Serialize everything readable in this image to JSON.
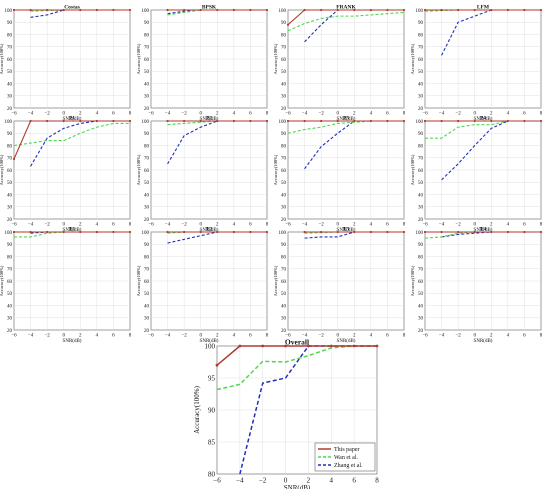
{
  "figure": {
    "legend": [
      {
        "key": "ours",
        "label": "This paper",
        "color": "#b03a2e",
        "dash": "solid"
      },
      {
        "key": "wan",
        "label": "Wan et al.",
        "color": "#4fd64f",
        "dash": "dashed"
      },
      {
        "key": "zhang",
        "label": "Zhang et al.",
        "color": "#1f2fbf",
        "dash": "dashed"
      }
    ],
    "grid": true
  },
  "chart_data": [
    {
      "type": "line",
      "title": "Costas",
      "xlabel": "SNR(dB)",
      "ylabel": "Accuracy(100%)",
      "xlim": [
        -6,
        8
      ],
      "ylim": [
        20,
        100
      ],
      "x": [
        -6,
        -4,
        -2,
        0,
        2,
        4,
        6,
        8
      ],
      "series": [
        {
          "name": "This paper",
          "values": [
            100,
            100,
            100,
            100,
            100,
            100,
            100,
            100
          ]
        },
        {
          "name": "Wan et al.",
          "values": [
            null,
            99,
            99.5,
            100,
            100,
            100,
            100,
            100
          ]
        },
        {
          "name": "Zhang et al.",
          "values": [
            null,
            94,
            96,
            100,
            100,
            100,
            100,
            100
          ]
        }
      ]
    },
    {
      "type": "line",
      "title": "BPSK",
      "xlabel": "SNR(dB)",
      "ylabel": "Accuracy(100%)",
      "xlim": [
        -6,
        8
      ],
      "ylim": [
        20,
        100
      ],
      "x": [
        -6,
        -4,
        -2,
        0,
        2,
        4,
        6,
        8
      ],
      "series": [
        {
          "name": "This paper",
          "values": [
            null,
            100,
            100,
            100,
            100,
            100,
            100,
            100
          ]
        },
        {
          "name": "Wan et al.",
          "values": [
            null,
            96,
            98,
            100,
            100,
            100,
            100,
            100
          ]
        },
        {
          "name": "Zhang et al.",
          "values": [
            null,
            97,
            99,
            100,
            100,
            100,
            100,
            100
          ]
        }
      ]
    },
    {
      "type": "line",
      "title": "FRANK",
      "xlabel": "SNR(dB)",
      "ylabel": "Accuracy(100%)",
      "xlim": [
        -6,
        8
      ],
      "ylim": [
        20,
        100
      ],
      "x": [
        -6,
        -4,
        -2,
        0,
        2,
        4,
        6,
        8
      ],
      "series": [
        {
          "name": "This paper",
          "values": [
            88,
            100,
            100,
            100,
            100,
            100,
            100,
            100
          ]
        },
        {
          "name": "Wan et al.",
          "values": [
            83,
            89,
            93,
            95,
            95,
            96,
            97,
            98
          ]
        },
        {
          "name": "Zhang et al.",
          "values": [
            null,
            74,
            88,
            100,
            100,
            100,
            100,
            100
          ]
        }
      ]
    },
    {
      "type": "line",
      "title": "LFM",
      "xlabel": "SNR(dB)",
      "ylabel": "Accuracy(100%)",
      "xlim": [
        -6,
        8
      ],
      "ylim": [
        20,
        100
      ],
      "x": [
        -6,
        -4,
        -2,
        0,
        2,
        4,
        6,
        8
      ],
      "series": [
        {
          "name": "This paper",
          "values": [
            100,
            100,
            100,
            100,
            100,
            100,
            100,
            100
          ]
        },
        {
          "name": "Wan et al.",
          "values": [
            99,
            99.5,
            100,
            100,
            100,
            100,
            100,
            100
          ]
        },
        {
          "name": "Zhang et al.",
          "values": [
            null,
            63,
            90,
            95,
            100,
            100,
            100,
            100
          ]
        }
      ]
    },
    {
      "type": "line",
      "title": "P1",
      "xlabel": "SNR(dB)",
      "ylabel": "Accuracy(100%)",
      "xlim": [
        -6,
        8
      ],
      "ylim": [
        20,
        100
      ],
      "x": [
        -6,
        -4,
        -2,
        0,
        2,
        4,
        6,
        8
      ],
      "series": [
        {
          "name": "This paper",
          "values": [
            69,
            100,
            100,
            100,
            100,
            100,
            100,
            100
          ]
        },
        {
          "name": "Wan et al.",
          "values": [
            80,
            82,
            84,
            84,
            90,
            95,
            98,
            98
          ]
        },
        {
          "name": "Zhang et al.",
          "values": [
            null,
            63,
            86,
            94,
            98,
            100,
            100,
            100
          ]
        }
      ]
    },
    {
      "type": "line",
      "title": "P2",
      "xlabel": "SNR(dB)",
      "ylabel": "Accuracy(100%)",
      "xlim": [
        -6,
        8
      ],
      "ylim": [
        20,
        100
      ],
      "x": [
        -6,
        -4,
        -2,
        0,
        2,
        4,
        6,
        8
      ],
      "series": [
        {
          "name": "This paper",
          "values": [
            null,
            100,
            100,
            100,
            100,
            100,
            100,
            100
          ]
        },
        {
          "name": "Wan et al.",
          "values": [
            null,
            97,
            98,
            99,
            100,
            100,
            100,
            100
          ]
        },
        {
          "name": "Zhang et al.",
          "values": [
            null,
            65,
            88,
            95,
            100,
            100,
            100,
            100
          ]
        }
      ]
    },
    {
      "type": "line",
      "title": "P3",
      "xlabel": "SNR(dB)",
      "ylabel": "Accuracy(100%)",
      "xlim": [
        -6,
        8
      ],
      "ylim": [
        20,
        100
      ],
      "x": [
        -6,
        -4,
        -2,
        0,
        2,
        4,
        6,
        8
      ],
      "series": [
        {
          "name": "This paper",
          "values": [
            100,
            100,
            100,
            100,
            100,
            100,
            100,
            100
          ]
        },
        {
          "name": "Wan et al.",
          "values": [
            90,
            93,
            95,
            98,
            99,
            100,
            100,
            100
          ]
        },
        {
          "name": "Zhang et al.",
          "values": [
            null,
            61,
            79,
            90,
            100,
            100,
            100,
            100
          ]
        }
      ]
    },
    {
      "type": "line",
      "title": "P4",
      "xlabel": "SNR(dB)",
      "ylabel": "Accuracy(100%)",
      "xlim": [
        -6,
        8
      ],
      "ylim": [
        20,
        100
      ],
      "x": [
        -6,
        -4,
        -2,
        0,
        2,
        4,
        6,
        8
      ],
      "series": [
        {
          "name": "This paper",
          "values": [
            100,
            100,
            100,
            100,
            100,
            100,
            100,
            100
          ]
        },
        {
          "name": "Wan et al.",
          "values": [
            86,
            86,
            95,
            97,
            97,
            100,
            100,
            100
          ]
        },
        {
          "name": "Zhang et al.",
          "values": [
            null,
            52,
            65,
            80,
            94,
            100,
            100,
            100
          ]
        }
      ]
    },
    {
      "type": "line",
      "title": "T1",
      "xlabel": "SNR(dB)",
      "ylabel": "Accuracy(100%)",
      "xlim": [
        -6,
        8
      ],
      "ylim": [
        20,
        100
      ],
      "x": [
        -6,
        -4,
        -2,
        0,
        2,
        4,
        6,
        8
      ],
      "series": [
        {
          "name": "This paper",
          "values": [
            100,
            100,
            100,
            100,
            100,
            100,
            100,
            100
          ]
        },
        {
          "name": "Wan et al.",
          "values": [
            96,
            96,
            99,
            100,
            100,
            100,
            100,
            100
          ]
        },
        {
          "name": "Zhang et al.",
          "values": [
            null,
            99,
            100,
            100,
            100,
            100,
            100,
            100
          ]
        }
      ]
    },
    {
      "type": "line",
      "title": "T2",
      "xlabel": "SNR(dB)",
      "ylabel": "Accuracy(100%)",
      "xlim": [
        -6,
        8
      ],
      "ylim": [
        20,
        100
      ],
      "x": [
        -6,
        -4,
        -2,
        0,
        2,
        4,
        6,
        8
      ],
      "series": [
        {
          "name": "This paper",
          "values": [
            null,
            100,
            100,
            100,
            100,
            100,
            100,
            100
          ]
        },
        {
          "name": "Wan et al.",
          "values": [
            null,
            99,
            100,
            100,
            100,
            100,
            100,
            100
          ]
        },
        {
          "name": "Zhang et al.",
          "values": [
            null,
            91,
            94,
            97,
            100,
            100,
            100,
            100
          ]
        }
      ]
    },
    {
      "type": "line",
      "title": "T3",
      "xlabel": "SNR(dB)",
      "ylabel": "Accuracy(100%)",
      "xlim": [
        -6,
        8
      ],
      "ylim": [
        20,
        100
      ],
      "x": [
        -6,
        -4,
        -2,
        0,
        2,
        4,
        6,
        8
      ],
      "series": [
        {
          "name": "This paper",
          "values": [
            null,
            100,
            100,
            100,
            100,
            100,
            100,
            100
          ]
        },
        {
          "name": "Wan et al.",
          "values": [
            null,
            99,
            99.5,
            100,
            100,
            100,
            100,
            100
          ]
        },
        {
          "name": "Zhang et al.",
          "values": [
            null,
            95,
            96,
            96,
            100,
            100,
            100,
            100
          ]
        }
      ]
    },
    {
      "type": "line",
      "title": "T4",
      "xlabel": "SNR(dB)",
      "ylabel": "Accuracy(100%)",
      "xlim": [
        -6,
        8
      ],
      "ylim": [
        20,
        100
      ],
      "x": [
        -6,
        -4,
        -2,
        0,
        2,
        4,
        6,
        8
      ],
      "series": [
        {
          "name": "This paper",
          "values": [
            100,
            100,
            100,
            100,
            100,
            100,
            100,
            100
          ]
        },
        {
          "name": "Wan et al.",
          "values": [
            95,
            96,
            99,
            100,
            100,
            100,
            100,
            100
          ]
        },
        {
          "name": "Zhang et al.",
          "values": [
            null,
            96,
            98,
            99,
            100,
            100,
            100,
            100
          ]
        }
      ]
    },
    {
      "type": "line",
      "title": "Overall",
      "xlabel": "SNR(dB)",
      "ylabel": "Accuracy(100%)",
      "xlim": [
        -6,
        8
      ],
      "ylim": [
        80,
        100
      ],
      "x": [
        -6,
        -4,
        -2,
        0,
        2,
        4,
        6,
        8
      ],
      "legend": "top-right",
      "series": [
        {
          "name": "This paper",
          "values": [
            97,
            100,
            100,
            100,
            100,
            100,
            100,
            100
          ]
        },
        {
          "name": "Wan et al.",
          "values": [
            93.2,
            94,
            97.6,
            97.5,
            98.5,
            99.7,
            100,
            100
          ]
        },
        {
          "name": "Zhang et al.",
          "values": [
            null,
            80,
            94.2,
            95,
            100,
            100,
            100,
            100
          ]
        }
      ]
    }
  ]
}
